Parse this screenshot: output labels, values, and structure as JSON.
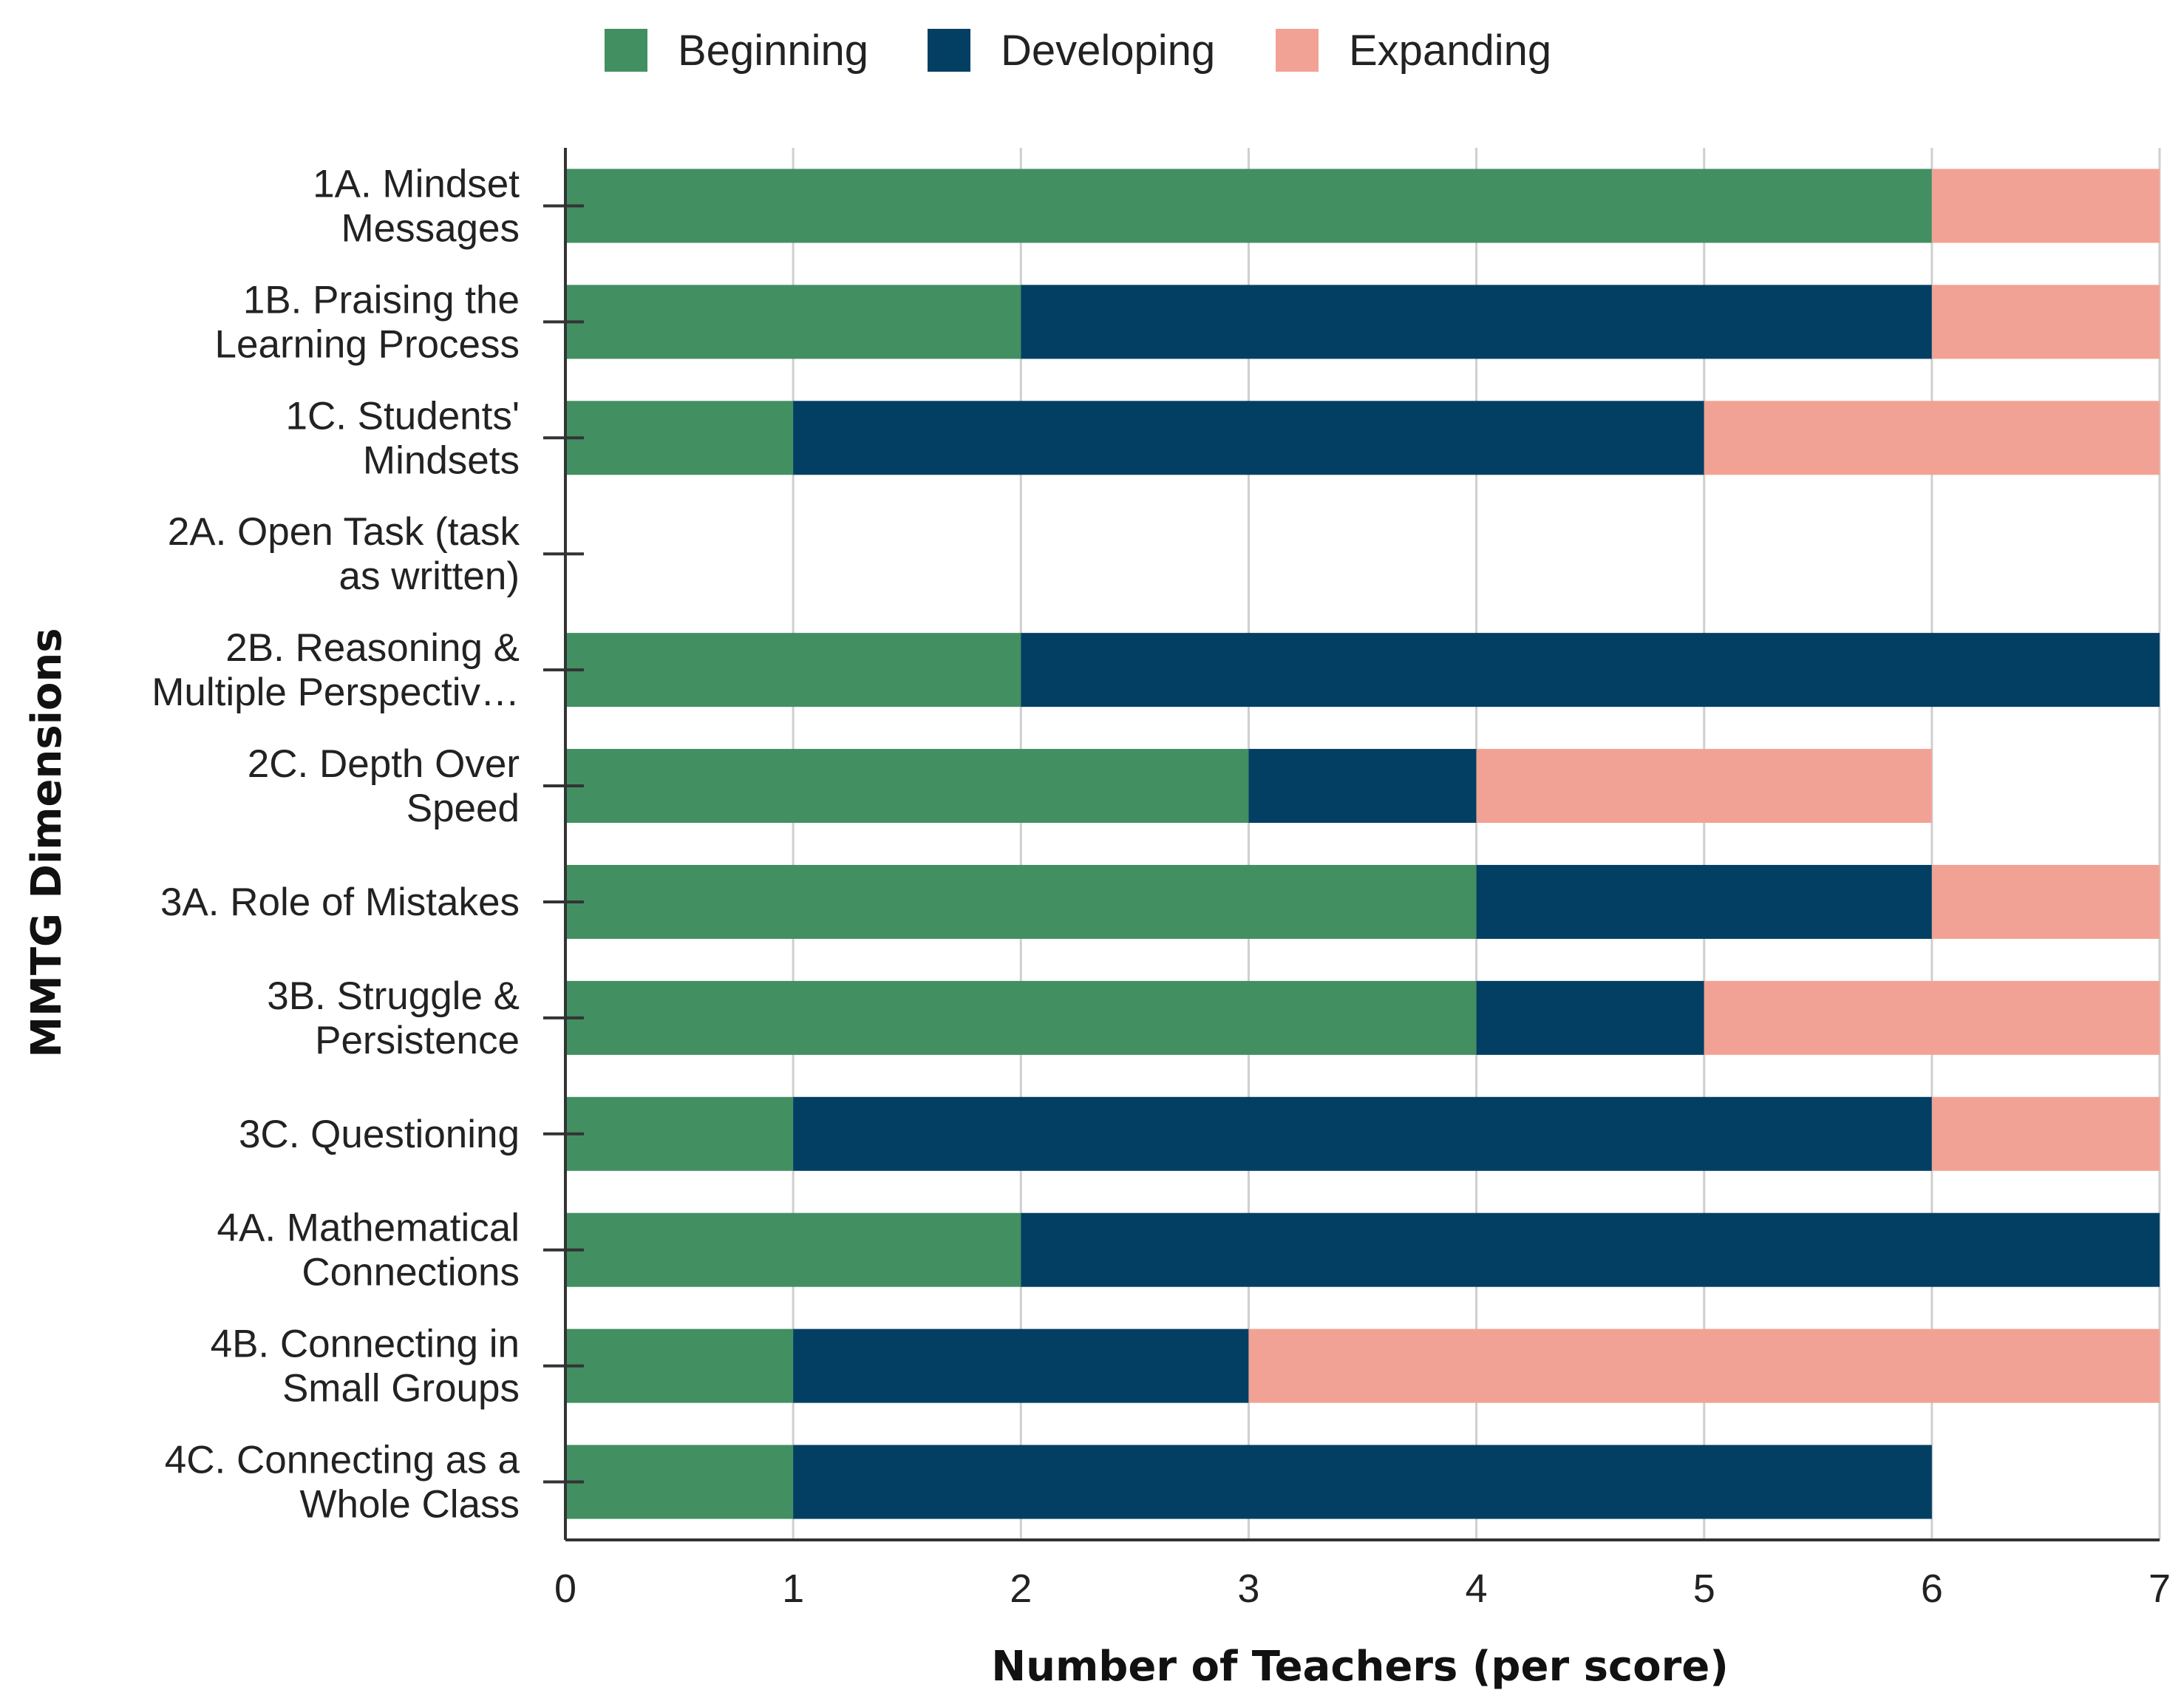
{
  "chart_data": {
    "type": "bar",
    "orientation": "horizontal",
    "stacked": true,
    "categories": [
      [
        "1A. Mindset",
        "Messages"
      ],
      [
        "1B. Praising the",
        "Learning Process"
      ],
      [
        "1C. Students'",
        "Mindsets"
      ],
      [
        "2A. Open Task (task",
        "as written)"
      ],
      [
        "2B. Reasoning &",
        "Multiple Perspectiv…"
      ],
      [
        "2C. Depth Over",
        "Speed"
      ],
      [
        "3A. Role of Mistakes"
      ],
      [
        "3B. Struggle &",
        "Persistence"
      ],
      [
        "3C. Questioning"
      ],
      [
        "4A. Mathematical",
        "Connections"
      ],
      [
        "4B. Connecting in",
        "Small Groups"
      ],
      [
        "4C. Connecting as a",
        "Whole Class"
      ]
    ],
    "series": [
      {
        "name": "Beginning",
        "color": "#428f62",
        "values": [
          6,
          2,
          1,
          0,
          2,
          3,
          4,
          4,
          1,
          2,
          1,
          1
        ]
      },
      {
        "name": "Developing",
        "color": "#033f63",
        "values": [
          0,
          4,
          4,
          0,
          5,
          1,
          2,
          1,
          5,
          5,
          2,
          5
        ]
      },
      {
        "name": "Expanding",
        "color": "#f2a294",
        "values": [
          1,
          1,
          2,
          0,
          0,
          2,
          1,
          2,
          1,
          0,
          4,
          0
        ]
      }
    ],
    "xlabel": "Number of Teachers (per score)",
    "ylabel": "MMTG Dimensions",
    "xlim": [
      0,
      7
    ],
    "xticks": [
      0,
      1,
      2,
      3,
      4,
      5,
      6,
      7
    ],
    "grid": true,
    "legend_position": "top-center"
  }
}
